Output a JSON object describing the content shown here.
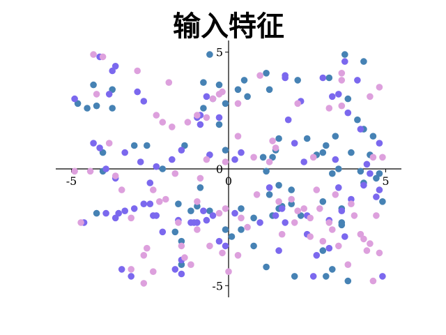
{
  "chart_data": {
    "type": "scatter",
    "title": "输入特征",
    "xlabel": "",
    "ylabel": "",
    "xlim": [
      -5.5,
      5.5
    ],
    "ylim": [
      -5.5,
      5.5
    ],
    "spines": "centered at origin",
    "grid": false,
    "legend": "none",
    "x_ticks": [
      {
        "value": -5,
        "label": "-5"
      },
      {
        "value": 0,
        "label": "0"
      },
      {
        "value": 5,
        "label": "5"
      }
    ],
    "y_ticks": [
      {
        "value": -5,
        "label": "-5"
      },
      {
        "value": 0,
        "label": "0"
      },
      {
        "value": 5,
        "label": "5"
      }
    ],
    "series": [
      {
        "color": "#4682b4",
        "points": [
          [
            -4.8,
            2.8
          ],
          [
            -4.5,
            2.6
          ],
          [
            -4.3,
            3.6
          ],
          [
            -4.2,
            2.7
          ],
          [
            -4.0,
            0.7
          ],
          [
            -4.0,
            -0.1
          ],
          [
            -4.2,
            -1.9
          ],
          [
            -3.7,
            3.4
          ],
          [
            -3.7,
            2.6
          ],
          [
            -3.0,
            1.0
          ],
          [
            -2.6,
            1.0
          ],
          [
            -2.1,
            0.0
          ],
          [
            -1.4,
            1.0
          ],
          [
            -1.6,
            -1.5
          ],
          [
            -1.7,
            -2.7
          ],
          [
            -1.5,
            -3.1
          ],
          [
            -1.5,
            -4.1
          ],
          [
            -1.2,
            -1.8
          ],
          [
            -0.9,
            -0.8
          ],
          [
            -1.0,
            -1.6
          ],
          [
            -0.6,
            -1.8
          ],
          [
            -0.8,
            2.6
          ],
          [
            -0.6,
            0.6
          ],
          [
            -0.5,
            3.0
          ],
          [
            -0.3,
            3.6
          ],
          [
            -0.1,
            2.8
          ],
          [
            -0.1,
            0.8
          ],
          [
            -0.6,
            4.9
          ],
          [
            -0.8,
            3.7
          ],
          [
            -0.3,
            1.9
          ],
          [
            -0.1,
            -2.6
          ],
          [
            0.1,
            -2.9
          ],
          [
            0.3,
            3.4
          ],
          [
            0.5,
            3.8
          ],
          [
            0.6,
            3.1
          ],
          [
            0.4,
            -1.7
          ],
          [
            0.4,
            -2.6
          ],
          [
            0.8,
            -2.1
          ],
          [
            0.8,
            -3.3
          ],
          [
            1.1,
            0.5
          ],
          [
            1.2,
            -0.1
          ],
          [
            1.2,
            4.1
          ],
          [
            1.3,
            3.4
          ],
          [
            1.3,
            -1.1
          ],
          [
            1.4,
            -2.0
          ],
          [
            1.5,
            0.8
          ],
          [
            1.4,
            0.5
          ],
          [
            1.6,
            1.3
          ],
          [
            1.6,
            -0.7
          ],
          [
            1.6,
            -1.7
          ],
          [
            1.7,
            -1.6
          ],
          [
            1.2,
            -4.2
          ],
          [
            2.1,
            -4.6
          ],
          [
            2.0,
            -1.5
          ],
          [
            2.0,
            -0.9
          ],
          [
            2.3,
            -2.0
          ],
          [
            2.2,
            3.8
          ],
          [
            2.5,
            1.3
          ],
          [
            2.8,
            0.6
          ],
          [
            3.0,
            0.7
          ],
          [
            3.0,
            -1.4
          ],
          [
            3.0,
            -3.5
          ],
          [
            3.1,
            1.0
          ],
          [
            3.2,
            3.9
          ],
          [
            3.3,
            -0.2
          ],
          [
            3.4,
            1.4
          ],
          [
            3.1,
            -4.6
          ],
          [
            3.3,
            -4.3
          ],
          [
            3.5,
            0.0
          ],
          [
            3.6,
            -1.7
          ],
          [
            3.6,
            -2.3
          ],
          [
            3.7,
            4.9
          ],
          [
            3.8,
            3.0
          ],
          [
            3.9,
            0.7
          ],
          [
            4.1,
            2.1
          ],
          [
            4.2,
            -0.1
          ],
          [
            4.3,
            -0.6
          ],
          [
            4.3,
            1.7
          ],
          [
            4.3,
            4.6
          ],
          [
            4.6,
            1.4
          ],
          [
            4.5,
            0.6
          ],
          [
            4.7,
            -0.4
          ],
          [
            4.8,
            -0.2
          ],
          [
            4.9,
            -1.4
          ],
          [
            3.8,
            -4.8
          ],
          [
            3.6,
            -2.4
          ]
        ]
      },
      {
        "color": "#7b68ee",
        "points": [
          [
            -4.9,
            3.0
          ],
          [
            -4.6,
            -2.3
          ],
          [
            -4.3,
            1.1
          ],
          [
            -4.1,
            0.9
          ],
          [
            -4.1,
            4.8
          ],
          [
            -3.9,
            -1.9
          ],
          [
            -3.9,
            0.0
          ],
          [
            -3.8,
            3.2
          ],
          [
            -3.6,
            -0.4
          ],
          [
            -3.5,
            -1.9
          ],
          [
            -3.6,
            -2.1
          ],
          [
            -3.3,
            -1.8
          ],
          [
            -3.3,
            0.7
          ],
          [
            -3.0,
            -1.7
          ],
          [
            -2.8,
            0.3
          ],
          [
            -2.7,
            -1.5
          ],
          [
            -2.5,
            -0.6
          ],
          [
            -2.5,
            -1.5
          ],
          [
            -2.4,
            -2.0
          ],
          [
            -2.3,
            0.1
          ],
          [
            -2.3,
            -2.0
          ],
          [
            -2.1,
            -2.7
          ],
          [
            -1.8,
            0.4
          ],
          [
            -1.7,
            -4.3
          ],
          [
            -1.5,
            -3.9
          ],
          [
            -1.5,
            -4.5
          ],
          [
            -1.2,
            -2.3
          ],
          [
            -1.0,
            -2.3
          ],
          [
            -0.8,
            -1.8
          ],
          [
            -0.7,
            -2.2
          ],
          [
            -1.1,
            -2.3
          ],
          [
            -0.5,
            -2.0
          ],
          [
            -0.3,
            -3.1
          ],
          [
            -0.1,
            -3.3
          ],
          [
            0.2,
            -1.9
          ],
          [
            0.2,
            0.4
          ],
          [
            0.4,
            0.7
          ],
          [
            -0.3,
            2.2
          ],
          [
            -0.7,
            3.1
          ],
          [
            -0.9,
            2.3
          ],
          [
            -1.0,
            2.2
          ],
          [
            -0.9,
            1.9
          ],
          [
            -0.6,
            0.6
          ],
          [
            -1.5,
            0.8
          ],
          [
            -1.6,
            -2.2
          ],
          [
            -2.7,
            2.9
          ],
          [
            -2.9,
            3.3
          ],
          [
            -3.6,
            4.4
          ],
          [
            -3.7,
            4.2
          ],
          [
            -3.1,
            -4.6
          ],
          [
            -3.4,
            -4.3
          ],
          [
            1.3,
            -0.8
          ],
          [
            1.0,
            -2.3
          ],
          [
            1.5,
            -2.0
          ],
          [
            1.6,
            -3.5
          ],
          [
            1.7,
            -1.7
          ],
          [
            1.8,
            -2.3
          ],
          [
            1.8,
            3.9
          ],
          [
            1.8,
            4.0
          ],
          [
            1.9,
            2.1
          ],
          [
            2.1,
            1.1
          ],
          [
            2.4,
            0.3
          ],
          [
            2.5,
            -2.0
          ],
          [
            2.5,
            -2.8
          ],
          [
            2.8,
            -3.7
          ],
          [
            2.7,
            -4.6
          ],
          [
            3.0,
            3.9
          ],
          [
            3.2,
            -3.4
          ],
          [
            3.4,
            0.4
          ],
          [
            3.5,
            -0.8
          ],
          [
            3.6,
            -1.8
          ],
          [
            3.7,
            -2.9
          ],
          [
            3.8,
            2.4
          ],
          [
            3.9,
            -1.3
          ],
          [
            4.1,
            3.8
          ],
          [
            4.2,
            1.7
          ],
          [
            4.3,
            -0.7
          ],
          [
            4.4,
            0.2
          ],
          [
            4.5,
            -0.2
          ],
          [
            4.7,
            -1.2
          ],
          [
            4.8,
            -0.9
          ],
          [
            4.8,
            1.1
          ],
          [
            4.9,
            -4.6
          ],
          [
            3.2,
            -2.2
          ],
          [
            2.3,
            2.9
          ],
          [
            3.7,
            4.6
          ],
          [
            3.3,
            3.1
          ],
          [
            3.5,
            3.2
          ]
        ]
      },
      {
        "color": "#dda0dd",
        "points": [
          [
            -4.9,
            -0.1
          ],
          [
            -4.7,
            -2.3
          ],
          [
            -4.4,
            -0.1
          ],
          [
            -4.3,
            4.9
          ],
          [
            -4.0,
            4.8
          ],
          [
            -4.2,
            3.2
          ],
          [
            -3.8,
            1.1
          ],
          [
            -3.6,
            -0.3
          ],
          [
            -3.4,
            -0.9
          ],
          [
            -3.1,
            -2.1
          ],
          [
            -3.1,
            -4.3
          ],
          [
            -2.9,
            4.2
          ],
          [
            -2.7,
            -3.7
          ],
          [
            -2.7,
            -4.9
          ],
          [
            -2.6,
            -3.4
          ],
          [
            -2.4,
            -0.9
          ],
          [
            -2.4,
            -4.4
          ],
          [
            -2.3,
            2.3
          ],
          [
            -2.2,
            -1.4
          ],
          [
            -2.1,
            2.0
          ],
          [
            -2.0,
            -1.3
          ],
          [
            -1.9,
            3.7
          ],
          [
            -1.8,
            1.8
          ],
          [
            -1.7,
            -0.2
          ],
          [
            -1.6,
            -2.3
          ],
          [
            -1.5,
            -3.3
          ],
          [
            -1.4,
            -3.8
          ],
          [
            -1.3,
            2.0
          ],
          [
            -1.2,
            -4.1
          ],
          [
            -1.0,
            2.3
          ],
          [
            -1.0,
            -1.4
          ],
          [
            -1.0,
            -2.6
          ],
          [
            -0.9,
            -0.4
          ],
          [
            -0.7,
            2.2
          ],
          [
            -0.7,
            0.4
          ],
          [
            -0.6,
            -3.3
          ],
          [
            -0.5,
            3.0
          ],
          [
            -0.3,
            -1.9
          ],
          [
            -0.2,
            -3.6
          ],
          [
            -0.1,
            -1.7
          ],
          [
            -0.1,
            0.3
          ],
          [
            -0.2,
            3.3
          ],
          [
            -0.3,
            3.2
          ],
          [
            0.0,
            -4.4
          ],
          [
            0.4,
            -2.1
          ],
          [
            0.3,
            1.4
          ],
          [
            0.3,
            2.8
          ],
          [
            0.3,
            -3.7
          ],
          [
            0.6,
            -2.5
          ],
          [
            0.8,
            0.5
          ],
          [
            0.9,
            -1.1
          ],
          [
            1.0,
            4.0
          ],
          [
            1.3,
            0.3
          ],
          [
            1.4,
            1.2
          ],
          [
            1.6,
            -1.4
          ],
          [
            1.7,
            -2.8
          ],
          [
            2.0,
            -1.3
          ],
          [
            2.1,
            -2.3
          ],
          [
            2.2,
            -1.8
          ],
          [
            2.4,
            -1.7
          ],
          [
            2.6,
            -2.1
          ],
          [
            2.6,
            -2.9
          ],
          [
            2.7,
            0.5
          ],
          [
            2.8,
            -0.9
          ],
          [
            2.9,
            -1.7
          ],
          [
            3.0,
            -3.1
          ],
          [
            3.2,
            -2.3
          ],
          [
            3.3,
            -2.6
          ],
          [
            3.4,
            -1.1
          ],
          [
            3.5,
            -3.3
          ],
          [
            3.6,
            3.8
          ],
          [
            3.6,
            2.7
          ],
          [
            3.8,
            -4.1
          ],
          [
            3.9,
            -1.5
          ],
          [
            4.0,
            -2.0
          ],
          [
            4.2,
            -2.8
          ],
          [
            4.3,
            -3.0
          ],
          [
            4.4,
            -3.5
          ],
          [
            4.5,
            -3.2
          ],
          [
            4.6,
            -4.8
          ],
          [
            4.7,
            -2.0
          ],
          [
            4.8,
            -3.6
          ],
          [
            4.6,
            0.5
          ],
          [
            4.5,
            3.1
          ],
          [
            4.8,
            3.5
          ],
          [
            3.6,
            4.1
          ],
          [
            3.2,
            2.6
          ],
          [
            2.2,
            2.8
          ],
          [
            1.5,
            0.9
          ],
          [
            4.9,
            0.5
          ]
        ]
      }
    ]
  }
}
